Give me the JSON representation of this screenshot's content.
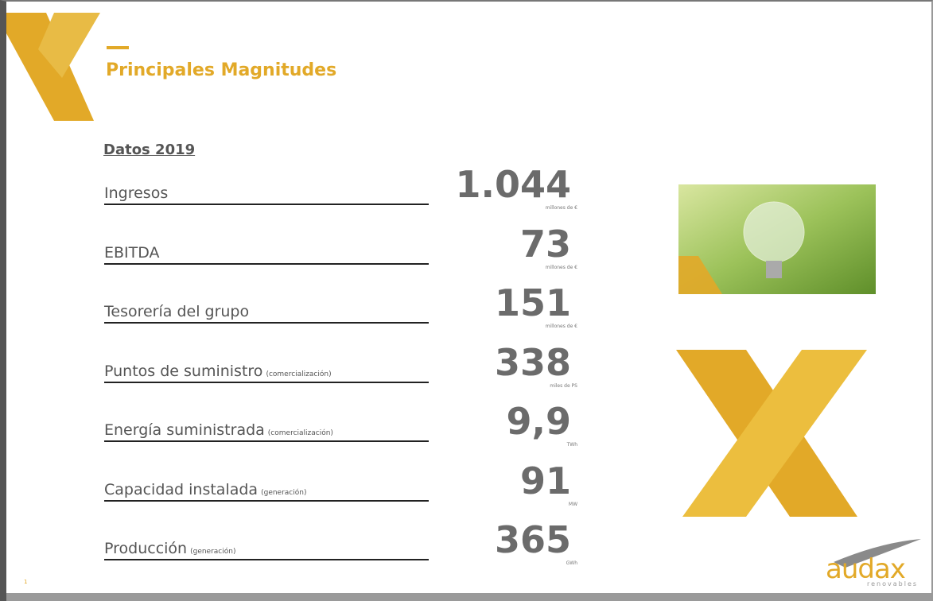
{
  "header": {
    "title": "Principales Magnitudes",
    "subtitle": "Datos 2019"
  },
  "rows": [
    {
      "label": "Ingresos",
      "value": "1.044",
      "unit": "millones de €"
    },
    {
      "label": "EBITDA",
      "value": "73",
      "unit": "millones de €"
    },
    {
      "label": "Tesorería del grupo",
      "value": "151",
      "unit": "millones de €"
    },
    {
      "label": "Puntos de suministro",
      "note": "(comercialización)",
      "value": "338",
      "unit": "miles de PS"
    },
    {
      "label": "Energía suministrada",
      "note": "(comercialización)",
      "value": "9,9",
      "unit": "TWh"
    },
    {
      "label": "Capacidad instalada",
      "note": "(generación)",
      "value": "91",
      "unit": "MW"
    },
    {
      "label": "Producción",
      "note": "(generación)",
      "value": "365",
      "unit": "GWh"
    }
  ],
  "footer": {
    "page": "1",
    "logo": "audax",
    "logo_tagline": "renovables"
  }
}
